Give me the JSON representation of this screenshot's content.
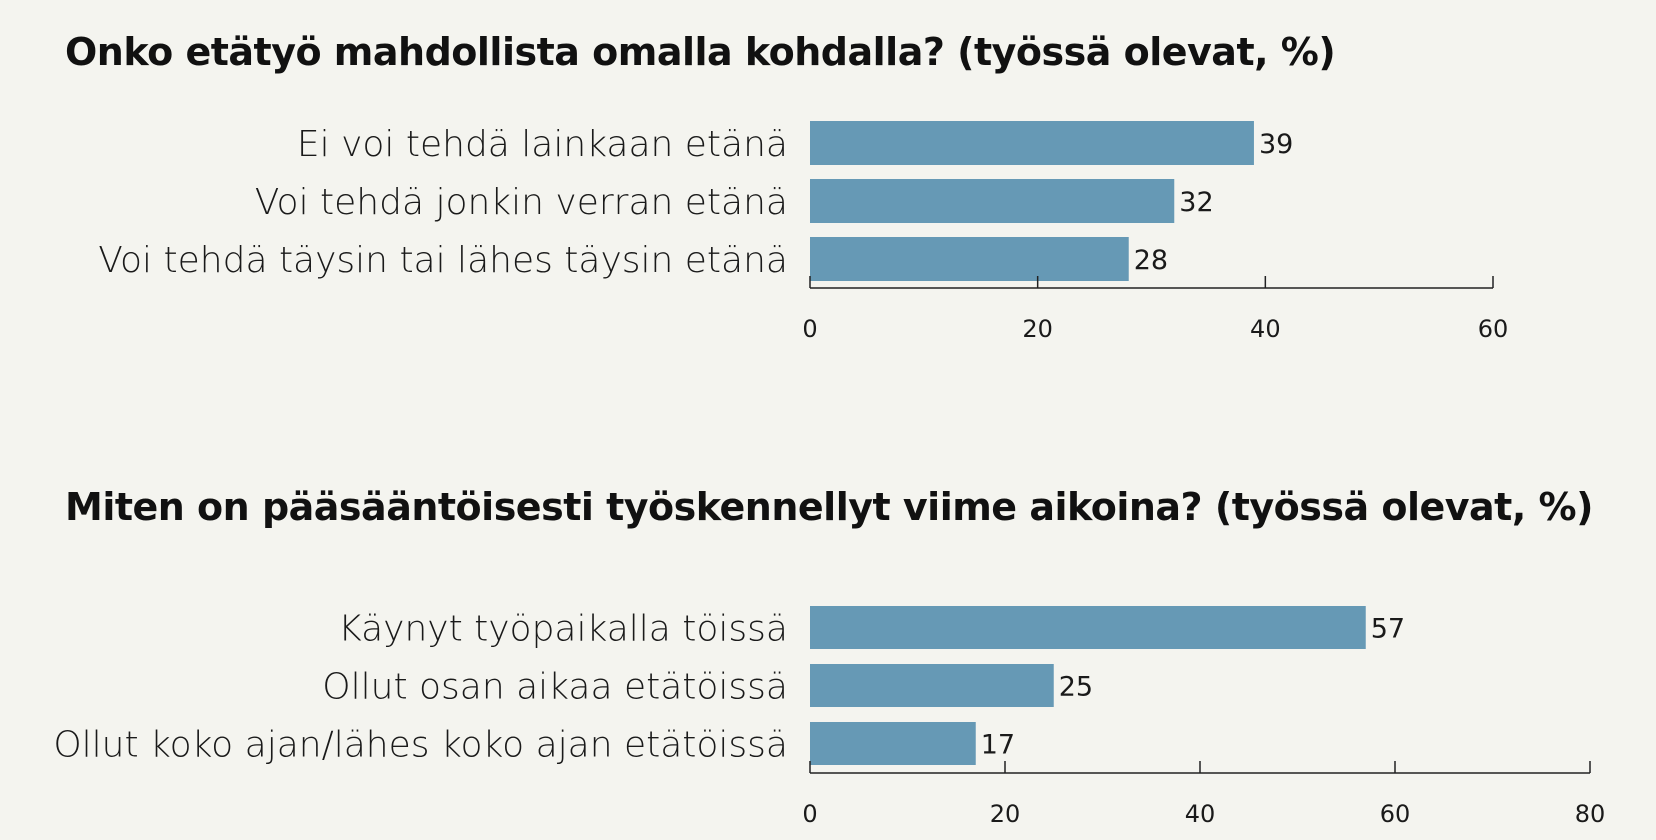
{
  "colors": {
    "bar": "#6699b5",
    "background": "#f4f4ef",
    "axis": "#222222"
  },
  "chart_data": [
    {
      "type": "bar",
      "orientation": "horizontal",
      "title": "Onko etätyö mahdollista omalla kohdalla? (työssä olevat, %)",
      "categories": [
        "Ei voi tehdä lainkaan etänä",
        "Voi tehdä jonkin verran etänä",
        "Voi tehdä täysin tai lähes täysin etänä"
      ],
      "values": [
        39,
        32,
        28
      ],
      "xlim": [
        0,
        60
      ],
      "xticks": [
        0,
        20,
        40,
        60
      ],
      "grid": false,
      "data_labels": true
    },
    {
      "type": "bar",
      "orientation": "horizontal",
      "title": "Miten on pääsääntöisesti työskennellyt viime aikoina? (työssä olevat, %)",
      "categories": [
        "Käynyt työpaikalla töissä",
        "Ollut osan aikaa etätöissä",
        "Ollut koko ajan/lähes koko ajan etätöissä"
      ],
      "values": [
        57,
        25,
        17
      ],
      "xlim": [
        0,
        80
      ],
      "xticks": [
        0,
        20,
        40,
        60,
        80
      ],
      "grid": false,
      "data_labels": true
    }
  ]
}
